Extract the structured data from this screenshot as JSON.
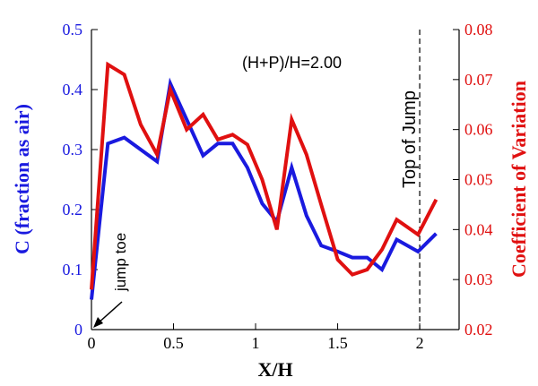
{
  "chart_data": {
    "type": "line",
    "xlabel": "X/H",
    "ylabel": "C (fraction as air)",
    "y2label": "Coefficient of Variation",
    "annotation": "(H+P)/H=2.00",
    "marker_label": "Top of Jump",
    "toe_label": "jump toe",
    "xlim": [
      0,
      2.24
    ],
    "ylim": [
      0,
      0.5
    ],
    "y2lim": [
      0.02,
      0.08
    ],
    "xticks": [
      "0",
      "0.5",
      "1",
      "1.5",
      "2"
    ],
    "xtick_values": [
      0,
      0.5,
      1,
      1.5,
      2
    ],
    "yticks": [
      "0",
      "0.1",
      "0.2",
      "0.3",
      "0.4",
      "0.5"
    ],
    "ytick_values": [
      0,
      0.1,
      0.2,
      0.3,
      0.4,
      0.5
    ],
    "y2ticks": [
      "0.02",
      "0.03",
      "0.04",
      "0.05",
      "0.06",
      "0.07",
      "0.08"
    ],
    "y2tick_values": [
      0.02,
      0.03,
      0.04,
      0.05,
      0.06,
      0.07,
      0.08
    ],
    "top_of_jump_x": 2.0,
    "x": [
      0,
      0.1,
      0.2,
      0.3,
      0.4,
      0.48,
      0.58,
      0.68,
      0.77,
      0.86,
      0.95,
      1.04,
      1.13,
      1.22,
      1.31,
      1.4,
      1.5,
      1.59,
      1.68,
      1.77,
      1.86,
      1.99,
      2.1
    ],
    "series": [
      {
        "name": "C",
        "axis": "left",
        "color": "#1a1adf",
        "values": [
          0.05,
          0.31,
          0.32,
          0.3,
          0.28,
          0.41,
          0.35,
          0.29,
          0.31,
          0.31,
          0.27,
          0.21,
          0.18,
          0.27,
          0.19,
          0.14,
          0.13,
          0.12,
          0.12,
          0.1,
          0.15,
          0.13,
          0.16
        ]
      },
      {
        "name": "Coefficient of Variation",
        "axis": "right",
        "color": "#e01010",
        "values": [
          0.028,
          0.073,
          0.071,
          0.061,
          0.055,
          0.068,
          0.06,
          0.063,
          0.058,
          0.059,
          0.057,
          0.05,
          0.04,
          0.062,
          0.055,
          0.045,
          0.034,
          0.031,
          0.032,
          0.036,
          0.042,
          0.039,
          0.046
        ]
      }
    ]
  }
}
